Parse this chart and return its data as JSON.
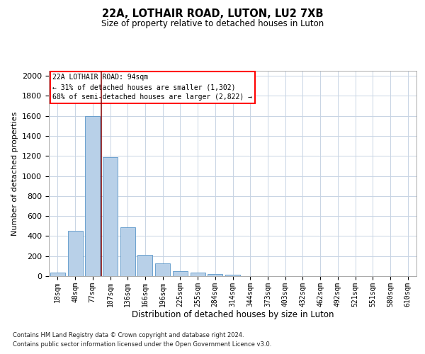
{
  "title": "22A, LOTHAIR ROAD, LUTON, LU2 7XB",
  "subtitle": "Size of property relative to detached houses in Luton",
  "xlabel": "Distribution of detached houses by size in Luton",
  "ylabel": "Number of detached properties",
  "categories": [
    "18sqm",
    "48sqm",
    "77sqm",
    "107sqm",
    "136sqm",
    "166sqm",
    "196sqm",
    "225sqm",
    "255sqm",
    "284sqm",
    "314sqm",
    "344sqm",
    "373sqm",
    "403sqm",
    "432sqm",
    "462sqm",
    "492sqm",
    "521sqm",
    "551sqm",
    "580sqm",
    "610sqm"
  ],
  "values": [
    38,
    455,
    1600,
    1190,
    485,
    210,
    125,
    50,
    38,
    22,
    15,
    0,
    0,
    0,
    0,
    0,
    0,
    0,
    0,
    0,
    0
  ],
  "bar_color": "#b8d0e8",
  "bar_edge_color": "#5a96c8",
  "grid_color": "#c8d4e4",
  "background_color": "#ffffff",
  "annotation_box_text": [
    "22A LOTHAIR ROAD: 94sqm",
    "← 31% of detached houses are smaller (1,302)",
    "68% of semi-detached houses are larger (2,822) →"
  ],
  "vline_color": "#8b1010",
  "ylim": [
    0,
    2050
  ],
  "yticks": [
    0,
    200,
    400,
    600,
    800,
    1000,
    1200,
    1400,
    1600,
    1800,
    2000
  ],
  "footnote1": "Contains HM Land Registry data © Crown copyright and database right 2024.",
  "footnote2": "Contains public sector information licensed under the Open Government Licence v3.0."
}
